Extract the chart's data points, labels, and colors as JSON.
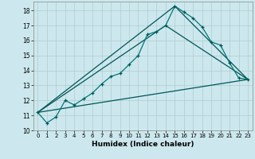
{
  "xlabel": "Humidex (Indice chaleur)",
  "background_color": "#cce8ee",
  "grid_color": "#b0cccc",
  "line_color_dark": "#005555",
  "line_color_main": "#007777",
  "xlim": [
    -0.5,
    23.5
  ],
  "ylim": [
    10,
    18.6
  ],
  "xticks": [
    0,
    1,
    2,
    3,
    4,
    5,
    6,
    7,
    8,
    9,
    10,
    11,
    12,
    13,
    14,
    15,
    16,
    17,
    18,
    19,
    20,
    21,
    22,
    23
  ],
  "yticks": [
    10,
    11,
    12,
    13,
    14,
    15,
    16,
    17,
    18
  ],
  "series1_x": [
    0,
    1,
    2,
    3,
    4,
    5,
    6,
    7,
    8,
    9,
    10,
    11,
    12,
    13,
    14,
    15,
    16,
    17,
    18,
    19,
    20,
    21,
    22,
    23
  ],
  "series1_y": [
    11.2,
    10.5,
    10.9,
    12.0,
    11.7,
    12.1,
    12.5,
    13.1,
    13.6,
    13.8,
    14.4,
    15.0,
    16.4,
    16.6,
    17.0,
    18.3,
    17.9,
    17.5,
    16.9,
    15.9,
    15.7,
    14.5,
    13.5,
    13.4
  ],
  "series2_x": [
    0,
    23
  ],
  "series2_y": [
    11.2,
    13.4
  ],
  "series3_x": [
    0,
    14,
    23
  ],
  "series3_y": [
    11.2,
    17.0,
    13.4
  ],
  "series4_x": [
    0,
    15,
    23
  ],
  "series4_y": [
    11.2,
    18.3,
    13.4
  ]
}
